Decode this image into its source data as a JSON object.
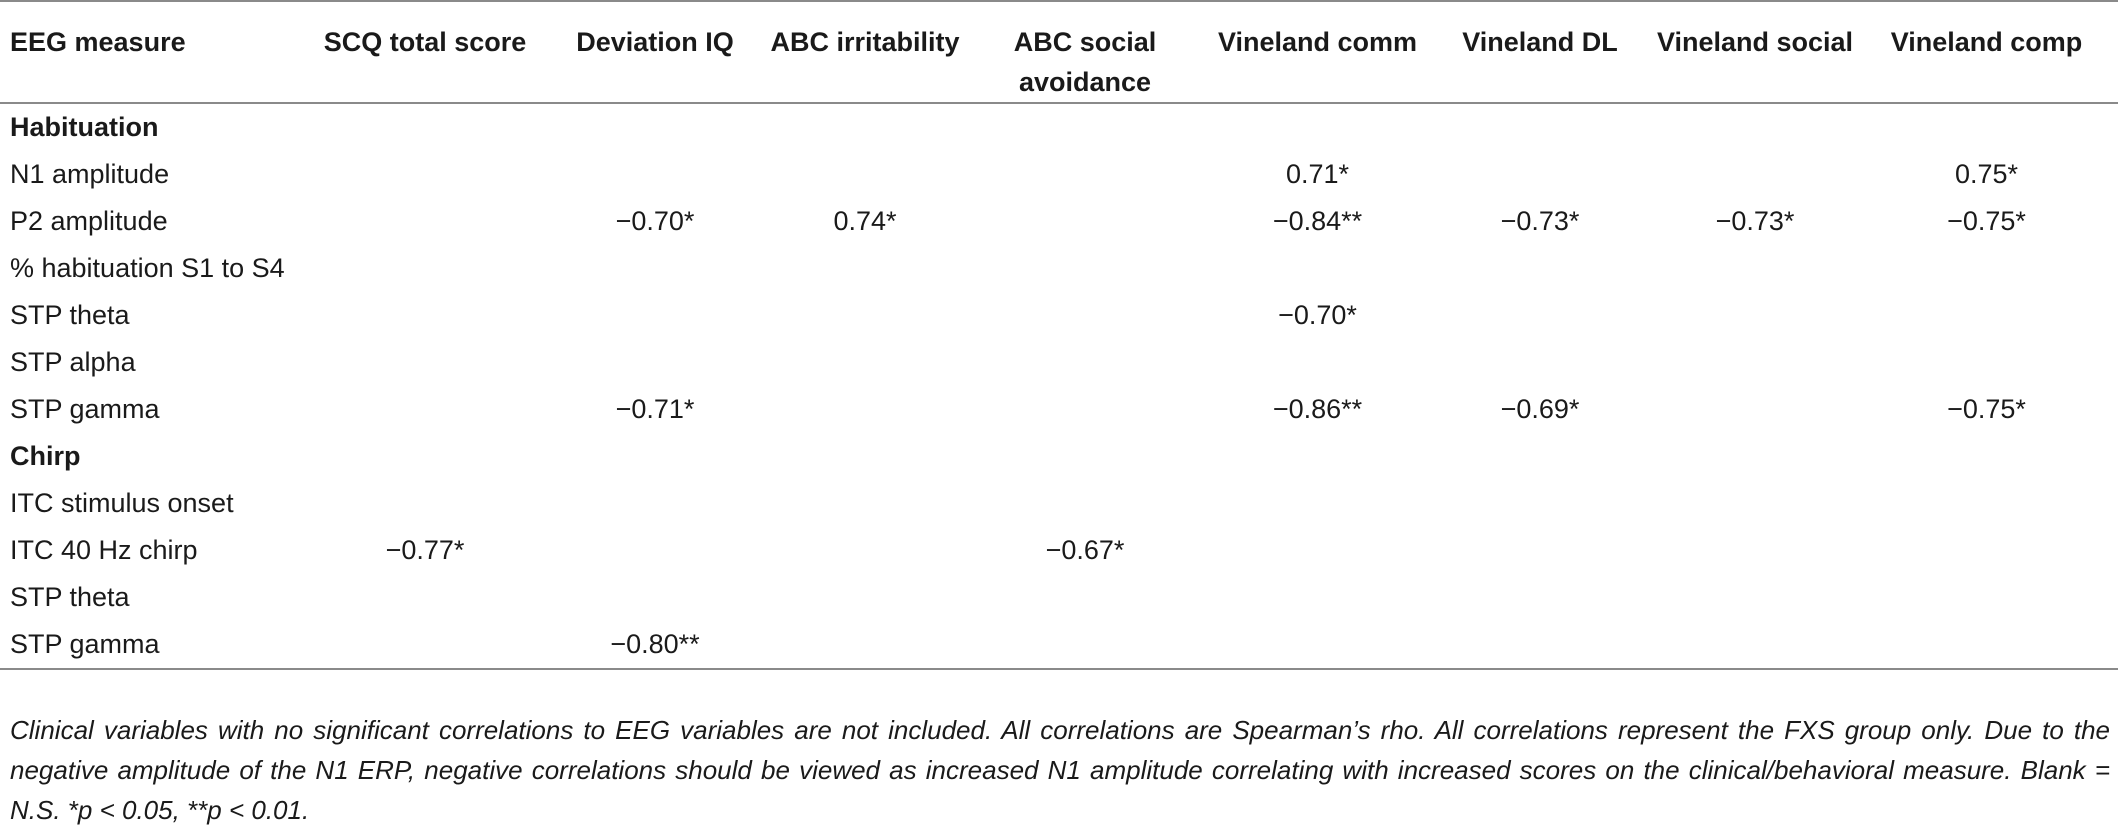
{
  "table": {
    "columns": [
      "EEG measure",
      "SCQ total score",
      "Deviation IQ",
      "ABC irritability",
      "ABC social avoidance",
      "Vineland comm",
      "Vineland DL",
      "Vineland social",
      "Vineland comp"
    ],
    "sections": [
      {
        "title": "Habituation",
        "rows": [
          {
            "label": "N1 amplitude",
            "values": [
              "",
              "",
              "",
              "",
              "0.71*",
              "",
              "",
              "0.75*"
            ]
          },
          {
            "label": "P2 amplitude",
            "values": [
              "",
              "−0.70*",
              "0.74*",
              "",
              "−0.84**",
              "−0.73*",
              "−0.73*",
              "−0.75*"
            ]
          },
          {
            "label": "% habituation S1 to S4",
            "values": [
              "",
              "",
              "",
              "",
              "",
              "",
              "",
              ""
            ]
          },
          {
            "label": "STP theta",
            "values": [
              "",
              "",
              "",
              "",
              "−0.70*",
              "",
              "",
              ""
            ]
          },
          {
            "label": "STP alpha",
            "values": [
              "",
              "",
              "",
              "",
              "",
              "",
              "",
              ""
            ]
          },
          {
            "label": "STP gamma",
            "values": [
              "",
              "−0.71*",
              "",
              "",
              "−0.86**",
              "−0.69*",
              "",
              "−0.75*"
            ]
          }
        ]
      },
      {
        "title": "Chirp",
        "rows": [
          {
            "label": "ITC stimulus onset",
            "values": [
              "",
              "",
              "",
              "",
              "",
              "",
              "",
              ""
            ]
          },
          {
            "label": "ITC 40 Hz chirp",
            "values": [
              "−0.77*",
              "",
              "",
              "−0.67*",
              "",
              "",
              "",
              ""
            ]
          },
          {
            "label": "STP theta",
            "values": [
              "",
              "",
              "",
              "",
              "",
              "",
              "",
              ""
            ]
          },
          {
            "label": "STP gamma",
            "values": [
              "",
              "−0.80**",
              "",
              "",
              "",
              "",
              "",
              ""
            ]
          }
        ]
      }
    ]
  },
  "footnote": "Clinical variables with no significant correlations to EEG variables are not included. All correlations are Spearman’s rho. All correlations represent the FXS group only. Due to the negative amplitude of the N1 ERP, negative correlations should be viewed as increased N1 amplitude correlating with increased scores on the clinical/behavioral measure. Blank = N.S. *p < 0.05, **p < 0.01."
}
